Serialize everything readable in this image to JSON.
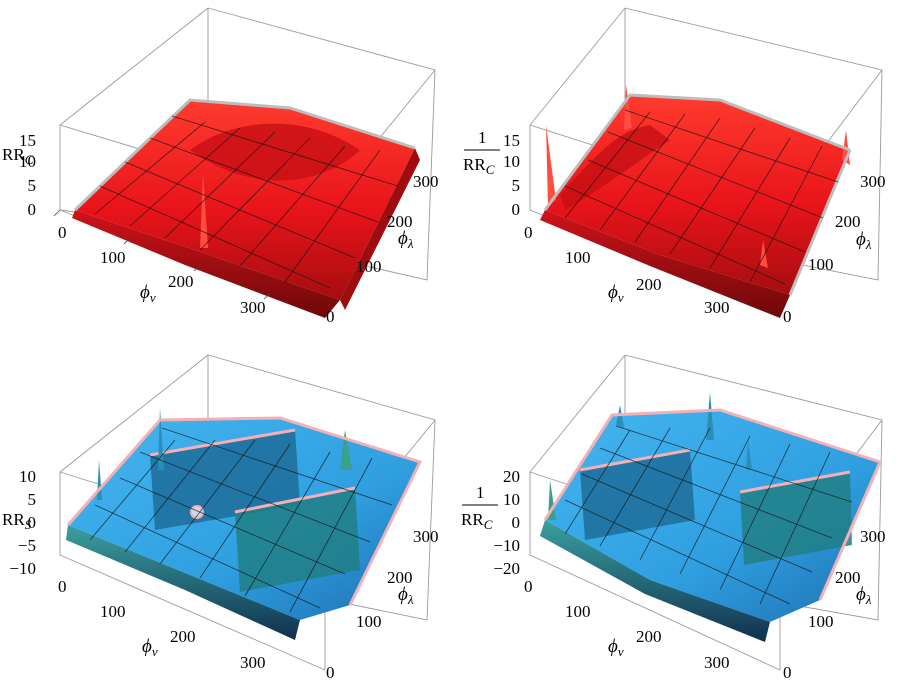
{
  "figure": {
    "panels": [
      {
        "id": "top-left",
        "z_label": "RR_C",
        "z_label_kind": "plain",
        "surface_color": "#e8141a",
        "surface_dark": "#8a0a0c",
        "edge_color": "#bdbdbd",
        "z_ticks": [
          "15",
          "10",
          "5",
          "0"
        ],
        "x_label": "ϕ_ν",
        "y_label": "ϕ_λ",
        "x_ticks": [
          "0",
          "100",
          "200",
          "300"
        ],
        "y_ticks": [
          "0",
          "100",
          "200",
          "300"
        ]
      },
      {
        "id": "top-right",
        "z_label": "RR_C",
        "z_label_kind": "reciprocal",
        "surface_color": "#e8141a",
        "surface_dark": "#8a0a0c",
        "edge_color": "#bdbdbd",
        "z_ticks": [
          "15",
          "10",
          "5",
          "0"
        ],
        "x_label": "ϕ_ν",
        "y_label": "ϕ_λ",
        "x_ticks": [
          "0",
          "100",
          "200",
          "300"
        ],
        "y_ticks": [
          "0",
          "100",
          "200",
          "300"
        ]
      },
      {
        "id": "bottom-left",
        "z_label": "RR_S",
        "z_label_kind": "plain",
        "surface_color": "#2f9fe0",
        "surface_dark": "#123e6e",
        "edge_color": "#f4b0b4",
        "z_ticks": [
          "10",
          "5",
          "0",
          "−5",
          "−10"
        ],
        "x_label": "ϕ_ν",
        "y_label": "ϕ_λ",
        "x_ticks": [
          "0",
          "100",
          "200",
          "300"
        ],
        "y_ticks": [
          "0",
          "100",
          "200",
          "300"
        ]
      },
      {
        "id": "bottom-right",
        "z_label": "RR_C",
        "z_label_kind": "reciprocal",
        "surface_color": "#2f9fe0",
        "surface_dark": "#123e6e",
        "edge_color": "#f4b0b4",
        "z_ticks": [
          "20",
          "10",
          "0",
          "−10",
          "−20"
        ],
        "x_label": "ϕ_ν",
        "y_label": "ϕ_λ",
        "x_ticks": [
          "0",
          "100",
          "200",
          "300"
        ],
        "y_ticks": [
          "0",
          "100",
          "200",
          "300"
        ]
      }
    ]
  },
  "chart_data": [
    {
      "type": "surface3d",
      "x_axis": "ϕ_ν",
      "y_axis": "ϕ_λ",
      "z_axis": "RR_C",
      "xlim": [
        0,
        360
      ],
      "ylim": [
        0,
        360
      ],
      "zlim": [
        0,
        15
      ],
      "x_ticks": [
        0,
        100,
        200,
        300
      ],
      "y_ticks": [
        0,
        100,
        200,
        300
      ],
      "z_ticks": [
        0,
        5,
        10,
        15
      ],
      "color": "#e8141a",
      "description_values": {
        "baseline_level": 3,
        "ridge_peak": 15
      }
    },
    {
      "type": "surface3d",
      "x_axis": "ϕ_ν",
      "y_axis": "ϕ_λ",
      "z_axis": "1/RR_C",
      "xlim": [
        0,
        360
      ],
      "ylim": [
        0,
        360
      ],
      "zlim": [
        0,
        15
      ],
      "x_ticks": [
        0,
        100,
        200,
        300
      ],
      "y_ticks": [
        0,
        100,
        200,
        300
      ],
      "z_ticks": [
        0,
        5,
        10,
        15
      ],
      "color": "#e8141a",
      "description_values": {
        "baseline_level": 4,
        "ridge_peak": 16
      }
    },
    {
      "type": "surface3d",
      "x_axis": "ϕ_ν",
      "y_axis": "ϕ_λ",
      "z_axis": "RR_S",
      "xlim": [
        0,
        360
      ],
      "ylim": [
        0,
        360
      ],
      "zlim": [
        -10,
        10
      ],
      "x_ticks": [
        0,
        100,
        200,
        300
      ],
      "y_ticks": [
        0,
        100,
        200,
        300
      ],
      "z_ticks": [
        -10,
        -5,
        0,
        5,
        10
      ],
      "color": "#2f9fe0",
      "description_values": {
        "baseline_level": 1,
        "ridge_peak": 10,
        "trough": -10
      }
    },
    {
      "type": "surface3d",
      "x_axis": "ϕ_ν",
      "y_axis": "ϕ_λ",
      "z_axis": "1/RR_C",
      "xlim": [
        0,
        360
      ],
      "ylim": [
        0,
        360
      ],
      "zlim": [
        -20,
        20
      ],
      "x_ticks": [
        0,
        100,
        200,
        300
      ],
      "y_ticks": [
        0,
        100,
        200,
        300
      ],
      "z_ticks": [
        -20,
        -10,
        0,
        10,
        20
      ],
      "color": "#2f9fe0",
      "description_values": {
        "baseline_level": 2,
        "ridge_peak": 20,
        "trough": -20
      }
    }
  ]
}
